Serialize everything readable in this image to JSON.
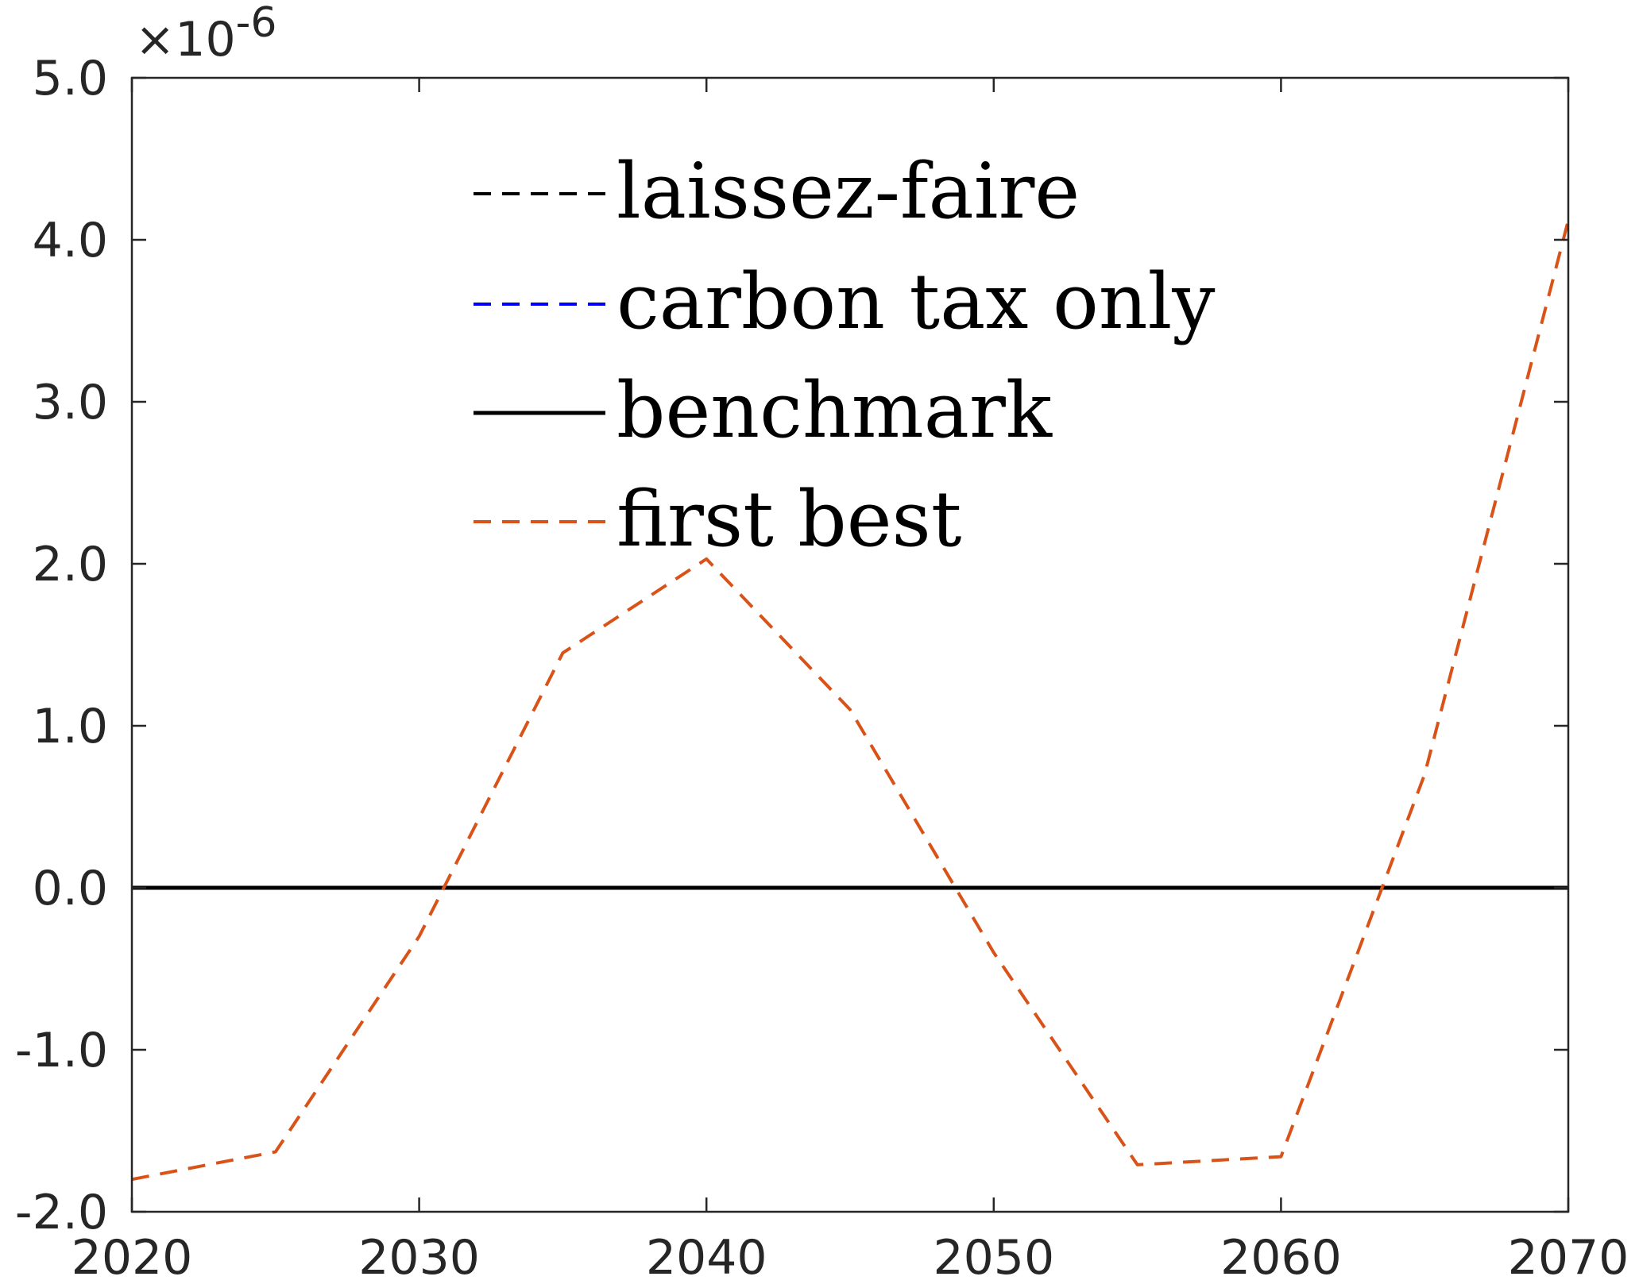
{
  "chart_data": {
    "type": "line",
    "title": "",
    "xlabel": "",
    "ylabel": "",
    "xlim": [
      2020,
      2070
    ],
    "ylim": [
      -2.0,
      5.0
    ],
    "y_multiplier": "×10",
    "y_exponent": "-6",
    "x_ticks": [
      2020,
      2030,
      2040,
      2050,
      2060,
      2070
    ],
    "x_tick_labels": [
      "2020",
      "2030",
      "2040",
      "2050",
      "2060",
      "2070"
    ],
    "y_ticks": [
      -2.0,
      -1.0,
      0.0,
      1.0,
      2.0,
      3.0,
      4.0,
      5.0
    ],
    "y_tick_labels": [
      "-2.0",
      "-1.0",
      "0.0",
      "1.0",
      "2.0",
      "3.0",
      "4.0",
      "5.0"
    ],
    "grid": false,
    "legend_position": "top-center",
    "series": [
      {
        "name": "laissez-faire",
        "color": "#000000",
        "style": "dashed",
        "x": [
          2020,
          2025,
          2030,
          2035,
          2040,
          2045,
          2050,
          2055,
          2060,
          2065,
          2070
        ],
        "y": [
          0,
          0,
          0,
          0,
          0,
          0,
          0,
          0,
          0,
          0,
          0
        ]
      },
      {
        "name": "carbon tax only",
        "color": "#0000ff",
        "style": "dashed",
        "x": [
          2020,
          2025,
          2030,
          2035,
          2040,
          2045,
          2050,
          2055,
          2060,
          2065,
          2070
        ],
        "y": [
          0,
          0,
          0,
          0,
          0,
          0,
          0,
          0,
          0,
          0,
          0
        ]
      },
      {
        "name": "benchmark",
        "color": "#000000",
        "style": "solid",
        "x": [
          2020,
          2025,
          2030,
          2035,
          2040,
          2045,
          2050,
          2055,
          2060,
          2065,
          2070
        ],
        "y": [
          0,
          0,
          0,
          0,
          0,
          0,
          0,
          0,
          0,
          0,
          0
        ]
      },
      {
        "name": "first best",
        "color": "#d95319",
        "style": "dashed",
        "x": [
          2020,
          2025,
          2030,
          2035,
          2040,
          2045,
          2050,
          2055,
          2060,
          2065,
          2070
        ],
        "y": [
          -1.8,
          -1.63,
          -0.3,
          1.45,
          2.03,
          1.1,
          -0.4,
          -1.71,
          -1.66,
          0.7,
          4.12
        ]
      }
    ]
  }
}
